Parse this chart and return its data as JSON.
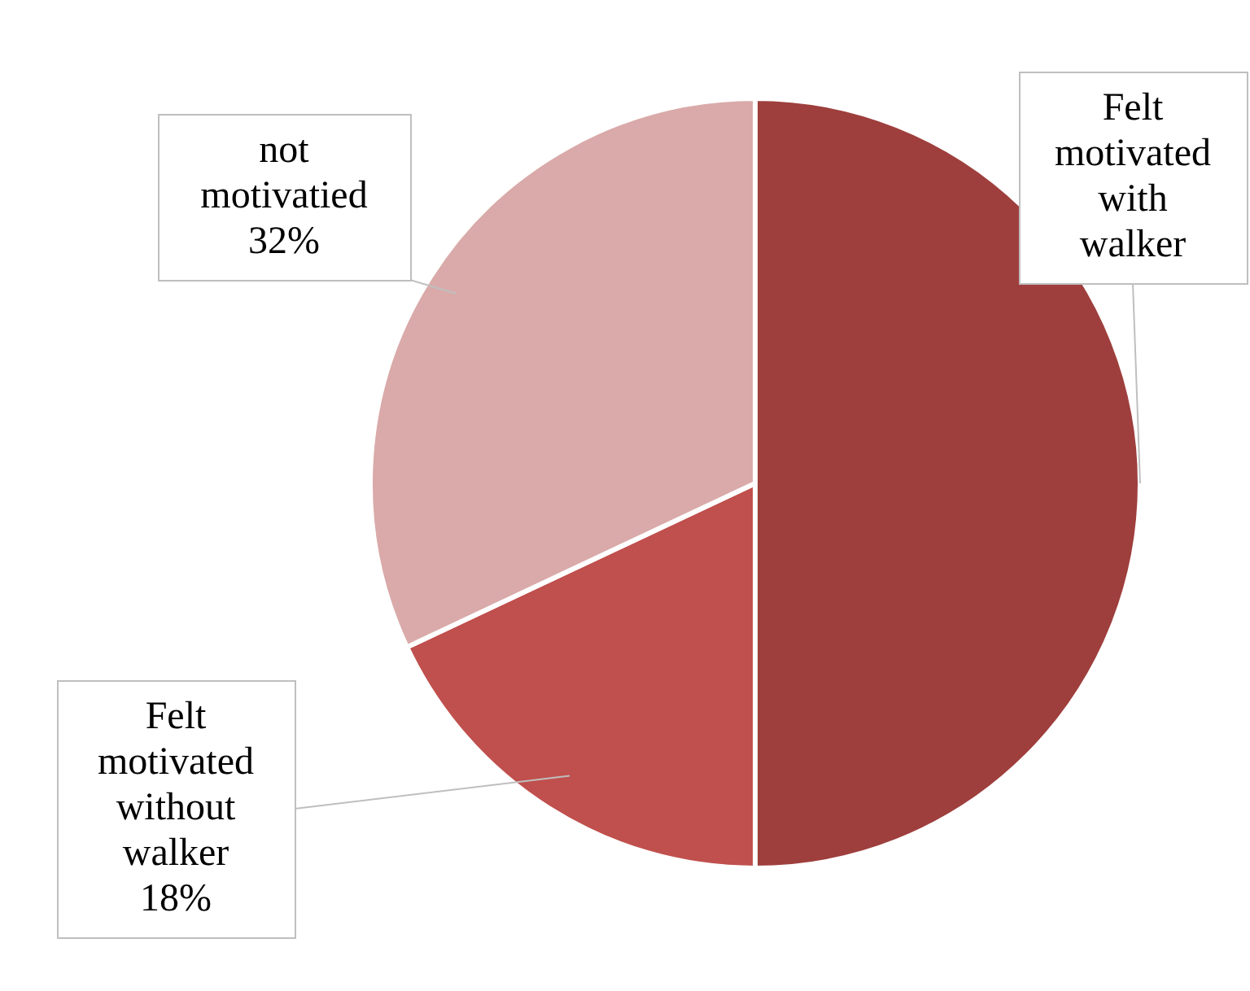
{
  "chart_data": {
    "type": "pie",
    "categories": [
      "Felt motivated with walker",
      "Felt motivated without walker",
      "not motivatied"
    ],
    "values": [
      50,
      18,
      32
    ],
    "colors": [
      "#9e3f3d",
      "#c0504d",
      "#d9aaa9"
    ],
    "value_labels": [
      null,
      "18%",
      "32%"
    ],
    "legend": false
  }
}
